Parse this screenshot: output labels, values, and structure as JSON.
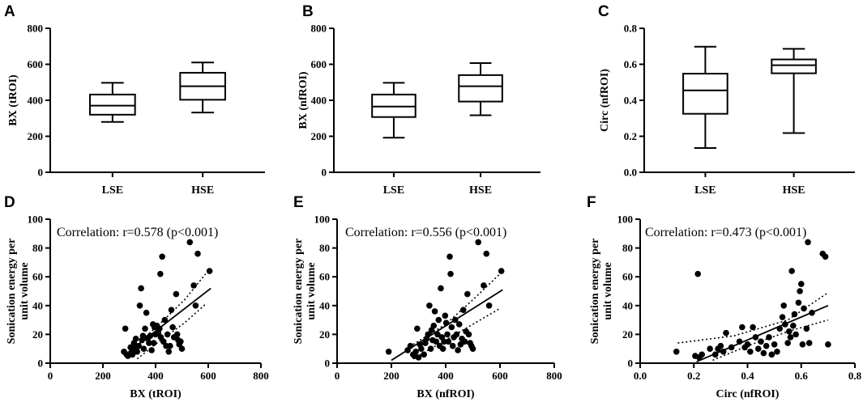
{
  "chart_data": [
    {
      "panel": "A",
      "type": "box",
      "ylabel": "BX (tROI)",
      "xlabel": "",
      "ylim": [
        0,
        800
      ],
      "yticks": [
        0,
        200,
        400,
        600,
        800
      ],
      "ytick_labels": [
        "0",
        "200",
        "400",
        "600",
        "800"
      ],
      "categories": [
        "LSE",
        "HSE"
      ],
      "boxes": [
        {
          "category": "LSE",
          "min": 280,
          "q1": 320,
          "median": 370,
          "q3": 432,
          "max": 497
        },
        {
          "category": "HSE",
          "min": 332,
          "q1": 403,
          "median": 478,
          "q3": 553,
          "max": 610
        }
      ]
    },
    {
      "panel": "B",
      "type": "box",
      "ylabel": "BX (nfROI)",
      "xlabel": "",
      "ylim": [
        0,
        800
      ],
      "yticks": [
        0,
        200,
        400,
        600,
        800
      ],
      "ytick_labels": [
        "0",
        "200",
        "400",
        "600",
        "800"
      ],
      "categories": [
        "LSE",
        "HSE"
      ],
      "boxes": [
        {
          "category": "LSE",
          "min": 192,
          "q1": 307,
          "median": 365,
          "q3": 432,
          "max": 497
        },
        {
          "category": "HSE",
          "min": 317,
          "q1": 393,
          "median": 478,
          "q3": 540,
          "max": 607
        }
      ]
    },
    {
      "panel": "C",
      "type": "box",
      "ylabel": "Circ (nfROI)",
      "xlabel": "",
      "ylim": [
        0,
        0.8
      ],
      "yticks": [
        0,
        0.2,
        0.4,
        0.6,
        0.8
      ],
      "ytick_labels": [
        "0.0",
        "0.2",
        "0.4",
        "0.6",
        "0.8"
      ],
      "categories": [
        "LSE",
        "HSE"
      ],
      "boxes": [
        {
          "category": "LSE",
          "min": 0.135,
          "q1": 0.325,
          "median": 0.455,
          "q3": 0.548,
          "max": 0.698
        },
        {
          "category": "HSE",
          "min": 0.218,
          "q1": 0.55,
          "median": 0.595,
          "q3": 0.627,
          "max": 0.686
        }
      ]
    },
    {
      "panel": "D",
      "type": "scatter",
      "ylabel": "Sonication energy per unit volume",
      "xlabel": "BX (tROI)",
      "xlim": [
        0,
        800
      ],
      "xticks": [
        0,
        200,
        400,
        600,
        800
      ],
      "xtick_labels": [
        "0",
        "200",
        "400",
        "600",
        "800"
      ],
      "ylim": [
        0,
        100
      ],
      "yticks": [
        0,
        20,
        40,
        60,
        80,
        100
      ],
      "ytick_labels": [
        "0",
        "20",
        "40",
        "60",
        "80",
        "100"
      ],
      "annotation": "Correlation: r=0.578 (p<0.001)",
      "fit": {
        "x": [
          285,
          610
        ],
        "y": [
          6,
          52
        ]
      },
      "ci_upper": [
        [
          330,
          13
        ],
        [
          420,
          28
        ],
        [
          510,
          44
        ],
        [
          590,
          62
        ]
      ],
      "ci_lower": [
        [
          330,
          3
        ],
        [
          420,
          16
        ],
        [
          510,
          28
        ],
        [
          590,
          41
        ]
      ],
      "points": [
        [
          280,
          8
        ],
        [
          285,
          24
        ],
        [
          290,
          6
        ],
        [
          295,
          5
        ],
        [
          305,
          11
        ],
        [
          308,
          7
        ],
        [
          312,
          6
        ],
        [
          318,
          14
        ],
        [
          322,
          10
        ],
        [
          325,
          17
        ],
        [
          330,
          8
        ],
        [
          336,
          12
        ],
        [
          340,
          40
        ],
        [
          345,
          52
        ],
        [
          348,
          16
        ],
        [
          352,
          19
        ],
        [
          355,
          10
        ],
        [
          360,
          24
        ],
        [
          365,
          35
        ],
        [
          370,
          17
        ],
        [
          375,
          14
        ],
        [
          380,
          19
        ],
        [
          385,
          9
        ],
        [
          390,
          27
        ],
        [
          393,
          14
        ],
        [
          396,
          25
        ],
        [
          400,
          20
        ],
        [
          405,
          26
        ],
        [
          410,
          21
        ],
        [
          415,
          24
        ],
        [
          418,
          62
        ],
        [
          420,
          18
        ],
        [
          425,
          74
        ],
        [
          430,
          15
        ],
        [
          435,
          30
        ],
        [
          440,
          12
        ],
        [
          445,
          20
        ],
        [
          450,
          8
        ],
        [
          455,
          12
        ],
        [
          460,
          37
        ],
        [
          465,
          25
        ],
        [
          470,
          18
        ],
        [
          478,
          48
        ],
        [
          482,
          20
        ],
        [
          486,
          16
        ],
        [
          490,
          13
        ],
        [
          495,
          15
        ],
        [
          500,
          10
        ],
        [
          530,
          84
        ],
        [
          545,
          54
        ],
        [
          552,
          40
        ],
        [
          560,
          76
        ],
        [
          605,
          64
        ]
      ]
    },
    {
      "panel": "E",
      "type": "scatter",
      "ylabel": "Sonication energy per unit volume",
      "xlabel": "BX (nfROI)",
      "xlim": [
        0,
        800
      ],
      "xticks": [
        0,
        200,
        400,
        600,
        800
      ],
      "xtick_labels": [
        "0",
        "200",
        "400",
        "600",
        "800"
      ],
      "ylim": [
        0,
        100
      ],
      "yticks": [
        0,
        20,
        40,
        60,
        80,
        100
      ],
      "ytick_labels": [
        "0",
        "20",
        "40",
        "60",
        "80",
        "100"
      ],
      "annotation": "Correlation: r=0.556 (p<0.001)",
      "fit": {
        "x": [
          200,
          610
        ],
        "y": [
          2,
          51
        ]
      },
      "ci_upper": [
        [
          280,
          13
        ],
        [
          400,
          27
        ],
        [
          500,
          44
        ],
        [
          600,
          62
        ]
      ],
      "ci_lower": [
        [
          280,
          3
        ],
        [
          400,
          16
        ],
        [
          500,
          27
        ],
        [
          600,
          38
        ]
      ],
      "points": [
        [
          190,
          8
        ],
        [
          260,
          9
        ],
        [
          270,
          12
        ],
        [
          280,
          6
        ],
        [
          285,
          5
        ],
        [
          290,
          8
        ],
        [
          295,
          24
        ],
        [
          300,
          4
        ],
        [
          305,
          13
        ],
        [
          310,
          10
        ],
        [
          320,
          6
        ],
        [
          325,
          14
        ],
        [
          330,
          17
        ],
        [
          335,
          20
        ],
        [
          340,
          40
        ],
        [
          345,
          10
        ],
        [
          348,
          23
        ],
        [
          352,
          16
        ],
        [
          356,
          26
        ],
        [
          360,
          36
        ],
        [
          365,
          15
        ],
        [
          370,
          20
        ],
        [
          374,
          30
        ],
        [
          378,
          12
        ],
        [
          382,
          52
        ],
        [
          386,
          18
        ],
        [
          390,
          10
        ],
        [
          394,
          15
        ],
        [
          398,
          33
        ],
        [
          402,
          28
        ],
        [
          406,
          20
        ],
        [
          410,
          15
        ],
        [
          415,
          74
        ],
        [
          418,
          62
        ],
        [
          422,
          25
        ],
        [
          426,
          12
        ],
        [
          430,
          18
        ],
        [
          435,
          30
        ],
        [
          440,
          20
        ],
        [
          445,
          9
        ],
        [
          450,
          27
        ],
        [
          455,
          13
        ],
        [
          460,
          17
        ],
        [
          465,
          37
        ],
        [
          470,
          15
        ],
        [
          475,
          22
        ],
        [
          480,
          48
        ],
        [
          485,
          20
        ],
        [
          490,
          14
        ],
        [
          495,
          12
        ],
        [
          500,
          10
        ],
        [
          520,
          84
        ],
        [
          540,
          54
        ],
        [
          550,
          76
        ],
        [
          560,
          40
        ],
        [
          605,
          64
        ]
      ]
    },
    {
      "panel": "F",
      "type": "scatter",
      "ylabel": "Sonication energy per unit volume",
      "xlabel": "Circ (nfROI)",
      "xlim": [
        0,
        0.8
      ],
      "xticks": [
        0,
        0.2,
        0.4,
        0.6,
        0.8
      ],
      "xtick_labels": [
        "0.0",
        "0.2",
        "0.4",
        "0.6",
        "0.8"
      ],
      "ylim": [
        0,
        100
      ],
      "yticks": [
        0,
        20,
        40,
        60,
        80,
        100
      ],
      "ytick_labels": [
        "0",
        "20",
        "40",
        "60",
        "80",
        "100"
      ],
      "annotation": "Correlation: r=0.473 (p<0.001)",
      "fit": {
        "x": [
          0.21,
          0.7
        ],
        "y": [
          1,
          40
        ]
      },
      "ci_upper": [
        [
          0.14,
          14
        ],
        [
          0.35,
          19
        ],
        [
          0.55,
          30
        ],
        [
          0.7,
          49
        ]
      ],
      "ci_lower": [
        [
          0.27,
          2
        ],
        [
          0.4,
          12
        ],
        [
          0.55,
          22
        ],
        [
          0.7,
          30
        ]
      ],
      "points": [
        [
          0.135,
          8
        ],
        [
          0.205,
          5
        ],
        [
          0.215,
          62
        ],
        [
          0.22,
          4
        ],
        [
          0.23,
          6
        ],
        [
          0.26,
          10
        ],
        [
          0.28,
          6
        ],
        [
          0.29,
          10
        ],
        [
          0.3,
          12
        ],
        [
          0.31,
          8
        ],
        [
          0.32,
          21
        ],
        [
          0.34,
          11
        ],
        [
          0.37,
          15
        ],
        [
          0.38,
          25
        ],
        [
          0.39,
          11
        ],
        [
          0.4,
          13
        ],
        [
          0.41,
          8
        ],
        [
          0.42,
          25
        ],
        [
          0.43,
          18
        ],
        [
          0.44,
          10
        ],
        [
          0.45,
          15
        ],
        [
          0.46,
          7
        ],
        [
          0.47,
          12
        ],
        [
          0.48,
          18
        ],
        [
          0.49,
          6
        ],
        [
          0.5,
          13
        ],
        [
          0.51,
          8
        ],
        [
          0.52,
          24
        ],
        [
          0.53,
          32
        ],
        [
          0.535,
          40
        ],
        [
          0.54,
          27
        ],
        [
          0.55,
          14
        ],
        [
          0.555,
          22
        ],
        [
          0.56,
          18
        ],
        [
          0.565,
          64
        ],
        [
          0.57,
          26
        ],
        [
          0.575,
          34
        ],
        [
          0.58,
          20
        ],
        [
          0.59,
          42
        ],
        [
          0.595,
          50
        ],
        [
          0.6,
          55
        ],
        [
          0.605,
          13
        ],
        [
          0.61,
          38
        ],
        [
          0.62,
          24
        ],
        [
          0.625,
          84
        ],
        [
          0.63,
          14
        ],
        [
          0.64,
          35
        ],
        [
          0.68,
          76
        ],
        [
          0.69,
          74
        ],
        [
          0.7,
          13
        ]
      ]
    }
  ]
}
